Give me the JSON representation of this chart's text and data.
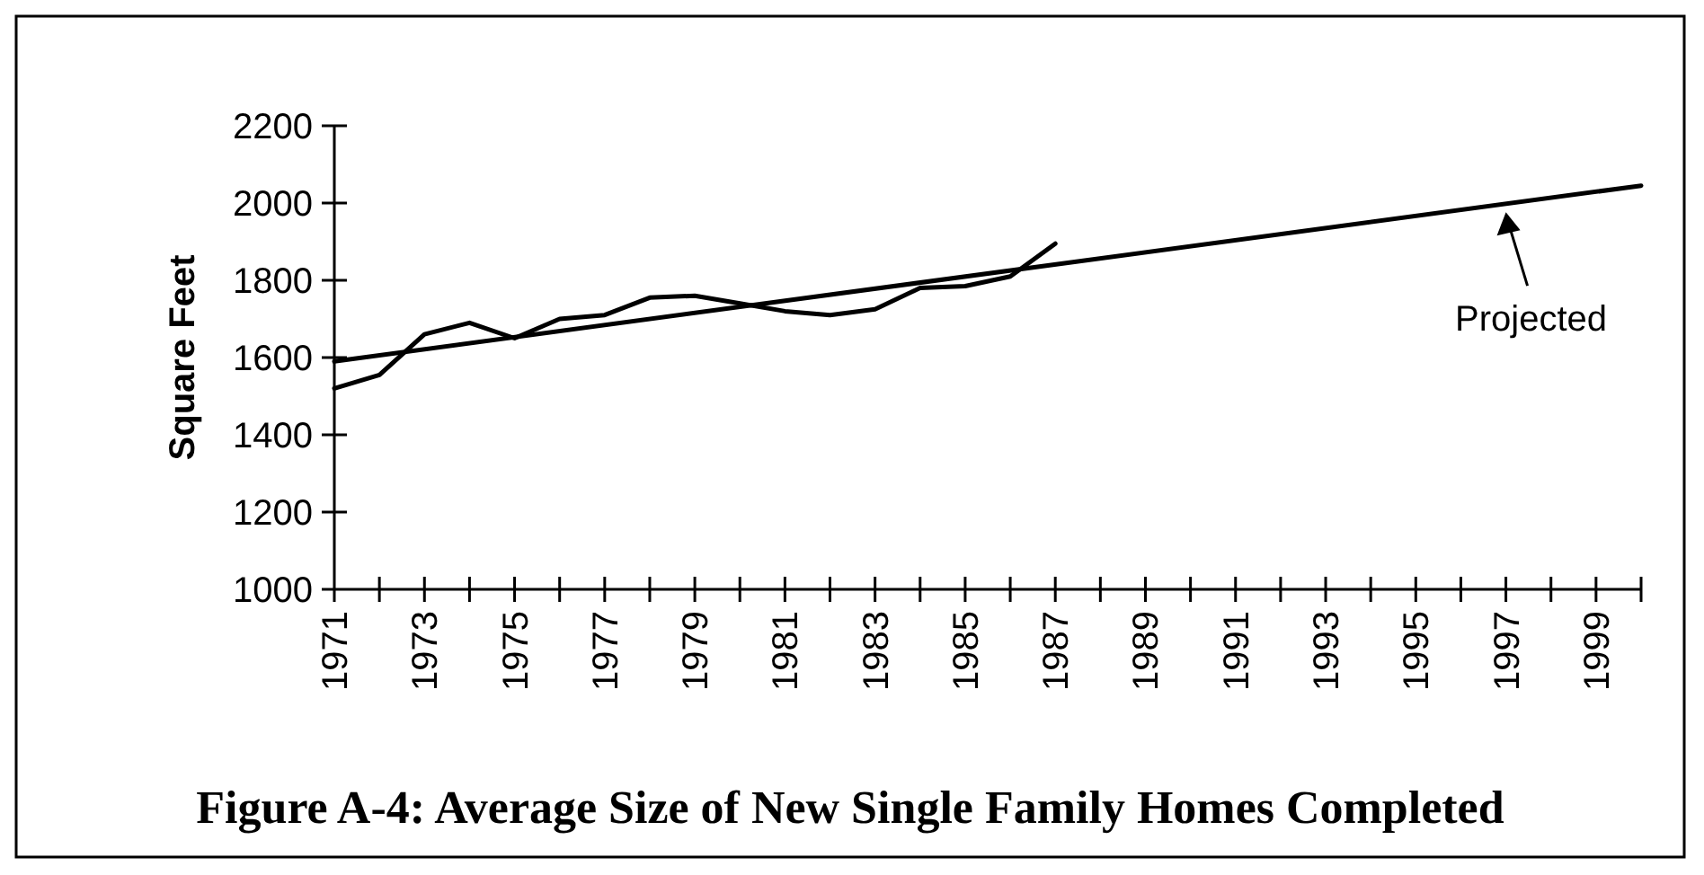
{
  "chart_data": {
    "type": "line",
    "title": "Figure A-4: Average Size of New Single Family Homes Completed",
    "ylabel": "Square Feet",
    "xlim": [
      1971,
      2000
    ],
    "ylim": [
      1000,
      2200
    ],
    "xticks": [
      1971,
      {
        "value": 1972,
        "label": null
      },
      1973,
      {
        "value": 1974,
        "label": null
      },
      1975,
      {
        "value": 1976,
        "label": null
      },
      1977,
      {
        "value": 1978,
        "label": null
      },
      1979,
      {
        "value": 1980,
        "label": null
      },
      1981,
      {
        "value": 1982,
        "label": null
      },
      1983,
      {
        "value": 1984,
        "label": null
      },
      1985,
      {
        "value": 1986,
        "label": null
      },
      1987,
      {
        "value": 1988,
        "label": null
      },
      1989,
      {
        "value": 1990,
        "label": null
      },
      1991,
      {
        "value": 1992,
        "label": null
      },
      1993,
      {
        "value": 1994,
        "label": null
      },
      1995,
      {
        "value": 1996,
        "label": null
      },
      1997,
      {
        "value": 1998,
        "label": null
      },
      1999,
      {
        "value": 2000,
        "label": null
      }
    ],
    "yticks": [
      1000,
      1200,
      1400,
      1600,
      1800,
      2000,
      2200
    ],
    "series": [
      {
        "color": "#000000",
        "x": [
          1971,
          1972,
          1973,
          1974,
          1975,
          1976,
          1977,
          1978,
          1979,
          1980,
          1981,
          1982,
          1983,
          1984,
          1985,
          1986,
          1987
        ],
        "values": [
          1520,
          1555,
          1660,
          1690,
          1650,
          1700,
          1710,
          1755,
          1760,
          1740,
          1720,
          1710,
          1725,
          1780,
          1785,
          1810,
          1895
        ]
      },
      {
        "color": "#000000",
        "x": [
          1971,
          2000
        ],
        "values": [
          1590,
          2045
        ]
      }
    ],
    "annotations": [
      {
        "text": "Projected",
        "x": 1997,
        "y": 1995
      }
    ]
  }
}
